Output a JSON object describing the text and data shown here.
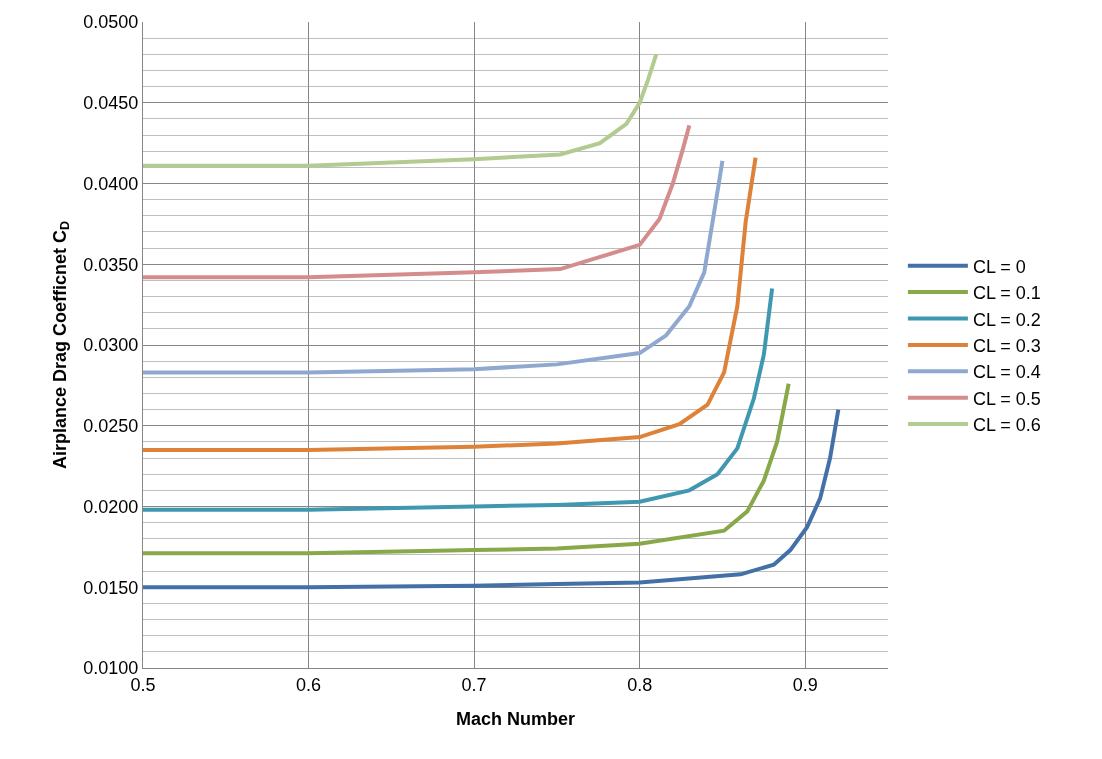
{
  "chart_data": {
    "type": "line",
    "xlabel": "Mach Number",
    "ylabel": "Airplance Drag Coefficnet C$_{D}$",
    "xlim": [
      0.5,
      0.95
    ],
    "xticks": [
      0.5,
      0.6,
      0.7,
      0.8,
      0.9
    ],
    "ylim": [
      0.01,
      0.05
    ],
    "yticks": [
      {
        "value": 0.01,
        "label": "0.0100"
      },
      {
        "value": 0.011,
        "label": null
      },
      {
        "value": 0.012,
        "label": null
      },
      {
        "value": 0.013,
        "label": null
      },
      {
        "value": 0.014,
        "label": null
      },
      {
        "value": 0.015,
        "label": "0.0150"
      },
      {
        "value": 0.016,
        "label": null
      },
      {
        "value": 0.017,
        "label": null
      },
      {
        "value": 0.018,
        "label": null
      },
      {
        "value": 0.019,
        "label": null
      },
      {
        "value": 0.02,
        "label": "0.0200"
      },
      {
        "value": 0.021,
        "label": null
      },
      {
        "value": 0.022,
        "label": null
      },
      {
        "value": 0.023,
        "label": null
      },
      {
        "value": 0.024,
        "label": null
      },
      {
        "value": 0.025,
        "label": "0.0250"
      },
      {
        "value": 0.026,
        "label": null
      },
      {
        "value": 0.027,
        "label": null
      },
      {
        "value": 0.028,
        "label": null
      },
      {
        "value": 0.029,
        "label": null
      },
      {
        "value": 0.03,
        "label": "0.0300"
      },
      {
        "value": 0.031,
        "label": null
      },
      {
        "value": 0.032,
        "label": null
      },
      {
        "value": 0.033,
        "label": null
      },
      {
        "value": 0.034,
        "label": null
      },
      {
        "value": 0.035,
        "label": "0.0350"
      },
      {
        "value": 0.036,
        "label": null
      },
      {
        "value": 0.037,
        "label": null
      },
      {
        "value": 0.038,
        "label": null
      },
      {
        "value": 0.039,
        "label": null
      },
      {
        "value": 0.04,
        "label": "0.0400"
      },
      {
        "value": 0.041,
        "label": null
      },
      {
        "value": 0.042,
        "label": null
      },
      {
        "value": 0.043,
        "label": null
      },
      {
        "value": 0.044,
        "label": null
      },
      {
        "value": 0.045,
        "label": "0.0450"
      },
      {
        "value": 0.046,
        "label": null
      },
      {
        "value": 0.047,
        "label": null
      },
      {
        "value": 0.048,
        "label": null
      },
      {
        "value": 0.049,
        "label": null
      },
      {
        "value": 0.05,
        "label": "0.0500"
      }
    ],
    "grid": true,
    "legend": "right",
    "marker": "none",
    "line_style": "solid",
    "series": [
      {
        "name": "CL = 0",
        "color": "#4470a8",
        "x": [
          0.5,
          0.6,
          0.7,
          0.75,
          0.8,
          0.861,
          0.881,
          0.891,
          0.901,
          0.909,
          0.915,
          0.92
        ],
        "values": [
          0.015,
          0.015,
          0.0151,
          0.0152,
          0.0153,
          0.0158,
          0.0164,
          0.0173,
          0.0187,
          0.0205,
          0.023,
          0.026
        ]
      },
      {
        "name": "CL = 0.1",
        "color": "#88a84a",
        "x": [
          0.5,
          0.6,
          0.7,
          0.75,
          0.8,
          0.851,
          0.865,
          0.875,
          0.883,
          0.89
        ],
        "values": [
          0.0171,
          0.0171,
          0.0173,
          0.0174,
          0.0177,
          0.0185,
          0.0197,
          0.0216,
          0.024,
          0.0276
        ]
      },
      {
        "name": "CL = 0.2",
        "color": "#3f98b0",
        "x": [
          0.5,
          0.6,
          0.7,
          0.75,
          0.8,
          0.83,
          0.847,
          0.859,
          0.869,
          0.875,
          0.88
        ],
        "values": [
          0.0198,
          0.0198,
          0.02,
          0.0201,
          0.0203,
          0.021,
          0.022,
          0.0236,
          0.0267,
          0.0294,
          0.0335
        ]
      },
      {
        "name": "CL = 0.3",
        "color": "#dd8238",
        "x": [
          0.5,
          0.6,
          0.7,
          0.75,
          0.8,
          0.824,
          0.841,
          0.851,
          0.859,
          0.864,
          0.87
        ],
        "values": [
          0.0235,
          0.0235,
          0.0237,
          0.0239,
          0.0243,
          0.0251,
          0.0263,
          0.0283,
          0.0324,
          0.0376,
          0.0416
        ]
      },
      {
        "name": "CL = 0.4",
        "color": "#8fa8d0",
        "x": [
          0.5,
          0.6,
          0.7,
          0.75,
          0.8,
          0.816,
          0.83,
          0.839,
          0.844,
          0.85
        ],
        "values": [
          0.0283,
          0.0283,
          0.0285,
          0.0288,
          0.0295,
          0.0306,
          0.0324,
          0.0345,
          0.0376,
          0.0414
        ]
      },
      {
        "name": "CL = 0.5",
        "color": "#d48c8c",
        "x": [
          0.5,
          0.6,
          0.7,
          0.752,
          0.8,
          0.812,
          0.82,
          0.826,
          0.83
        ],
        "values": [
          0.0342,
          0.0342,
          0.0345,
          0.0347,
          0.0362,
          0.0378,
          0.04,
          0.0421,
          0.0436
        ]
      },
      {
        "name": "CL = 0.6",
        "color": "#b3cb91",
        "x": [
          0.5,
          0.6,
          0.7,
          0.752,
          0.776,
          0.792,
          0.8,
          0.805,
          0.81
        ],
        "values": [
          0.0411,
          0.0411,
          0.0415,
          0.0418,
          0.0425,
          0.0437,
          0.045,
          0.0464,
          0.048
        ]
      }
    ]
  }
}
